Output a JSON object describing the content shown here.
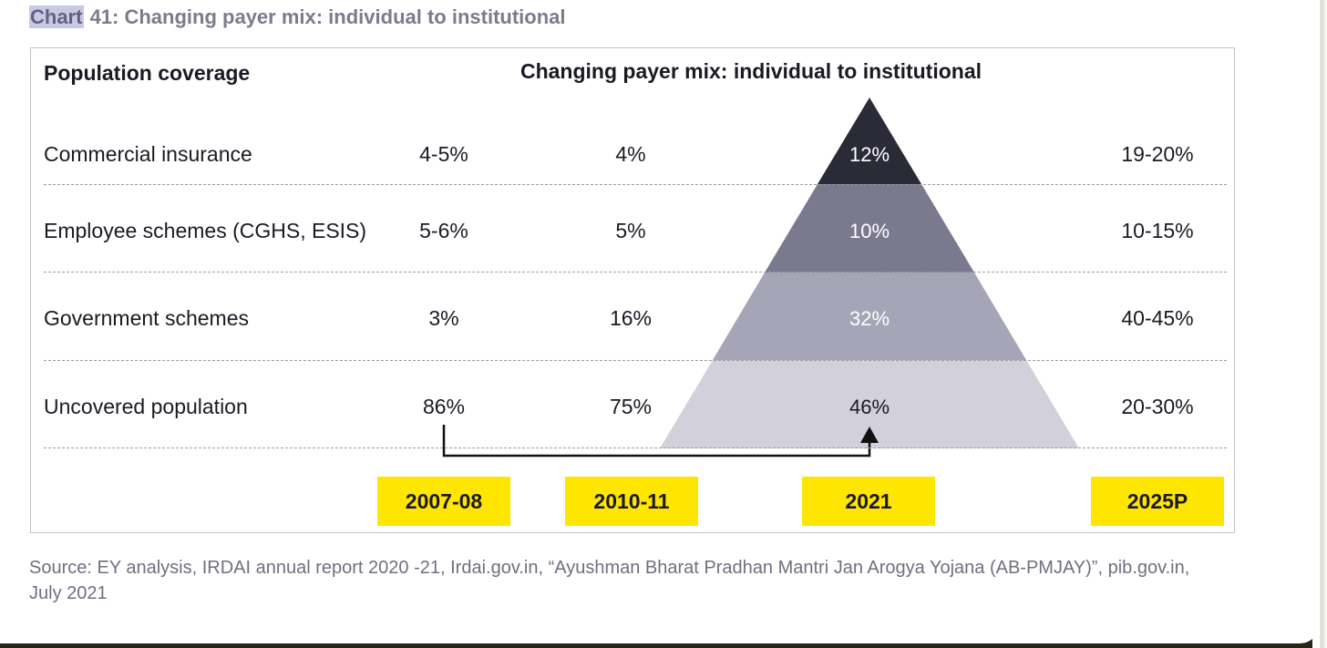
{
  "chart_heading": {
    "prefix": "Chart",
    "rest": " 41: Changing payer mix: individual to institutional"
  },
  "table": {
    "header_left": "Population coverage",
    "header_center": "Changing payer mix: individual to institutional",
    "rows": [
      {
        "label": "Commercial insurance",
        "v2007": "4-5%",
        "v2010": "4%",
        "v2021": "12%",
        "v2025": "19-20%"
      },
      {
        "label": "Employee schemes (CGHS, ESIS)",
        "v2007": "5-6%",
        "v2010": "5%",
        "v2021": "10%",
        "v2025": "10-15%"
      },
      {
        "label": "Government schemes",
        "v2007": "3%",
        "v2010": "16%",
        "v2021": "32%",
        "v2025": "40-45%"
      },
      {
        "label": "Uncovered population",
        "v2007": "86%",
        "v2010": "75%",
        "v2021": "46%",
        "v2025": "20-30%"
      }
    ],
    "years": [
      "2007-08",
      "2010-11",
      "2021",
      "2025P"
    ]
  },
  "pyramid_colors": [
    "#2b2b37",
    "#7a798e",
    "#a6a5b7",
    "#d2d1db"
  ],
  "pyramid_text_colors": [
    "#ffffff",
    "#ffffff",
    "#ffffff",
    "#1a1a24"
  ],
  "highlight_color": "#ffe600",
  "source": "Source:  EY analysis, IRDAI annual report 2020 -21, Irdai.gov.in, “Ayushman Bharat Pradhan Mantri Jan Arogya Yojana (AB-PMJAY)”, pib.gov.in, July 2021"
}
